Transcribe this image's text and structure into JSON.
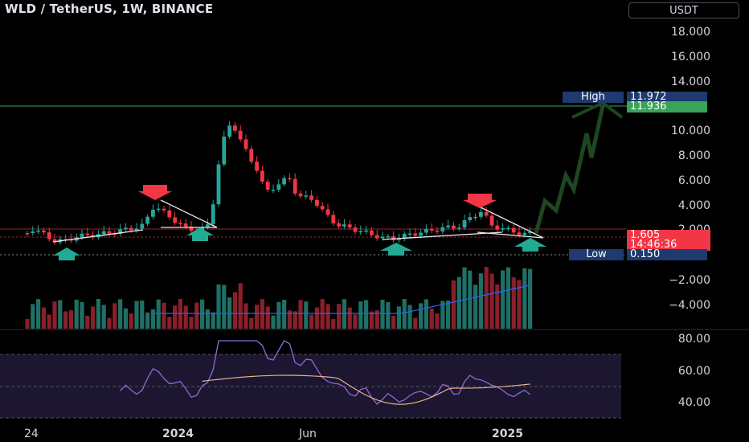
{
  "header": {
    "symbol_title": "WLD / TetherUS, 1W, BINANCE",
    "currency_button": "USDT"
  },
  "price_axis": {
    "labels": [
      "18.000",
      "16.000",
      "14.000",
      "10.000",
      "8.000",
      "6.000",
      "4.000",
      "2.000",
      "−2.000",
      "−4.000"
    ],
    "high_label": "High",
    "high_value": "11.972",
    "target_value": "11.936",
    "current_price": "1.605",
    "countdown": "14:46:36",
    "low_label": "Low",
    "low_value": "0.150"
  },
  "rsi_axis": {
    "labels": [
      "80.00",
      "60.00",
      "40.00"
    ]
  },
  "time_axis": {
    "labels": [
      "24",
      "2024",
      "Jun",
      "2025"
    ]
  },
  "colors": {
    "up": "#26a69a",
    "down": "#f23645",
    "projection": "#1e4620",
    "high_line": "#3aa35a",
    "rsi": "#8c6bd9",
    "rsi_ma": "#e6b48a",
    "volume_ma": "#2962ff"
  },
  "annotations": {
    "up_arrows": 4,
    "down_arrows": 2
  }
}
